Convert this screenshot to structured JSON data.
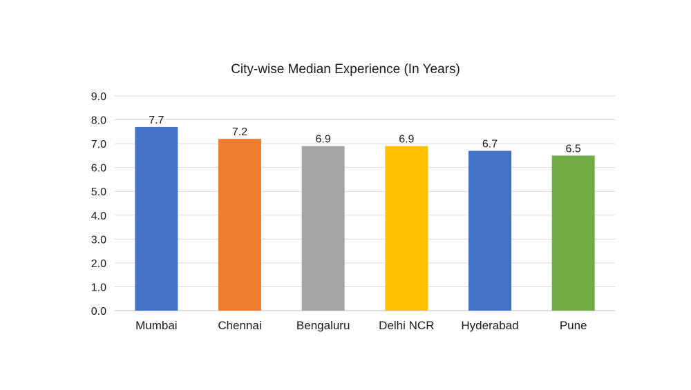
{
  "chart_data": {
    "type": "bar",
    "title": "City-wise Median Experience (In Years)",
    "categories": [
      "Mumbai",
      "Chennai",
      "Bengaluru",
      "Delhi NCR",
      "Hyderabad",
      "Pune"
    ],
    "values": [
      7.7,
      7.2,
      6.9,
      6.9,
      6.7,
      6.5
    ],
    "data_labels": [
      "7.7",
      "7.2",
      "6.9",
      "6.9",
      "6.7",
      "6.5"
    ],
    "bar_colors": [
      "#4472C4",
      "#ED7D31",
      "#A5A5A5",
      "#FFC000",
      "#4472C4",
      "#70AD47"
    ],
    "ylim": [
      0,
      9
    ],
    "yticks": [
      0,
      1,
      2,
      3,
      4,
      5,
      6,
      7,
      8,
      9
    ],
    "ytick_labels": [
      "0.0",
      "1.0",
      "2.0",
      "3.0",
      "4.0",
      "5.0",
      "6.0",
      "7.0",
      "8.0",
      "9.0"
    ],
    "xlabel": "",
    "ylabel": "",
    "grid": true,
    "legend": "none"
  }
}
